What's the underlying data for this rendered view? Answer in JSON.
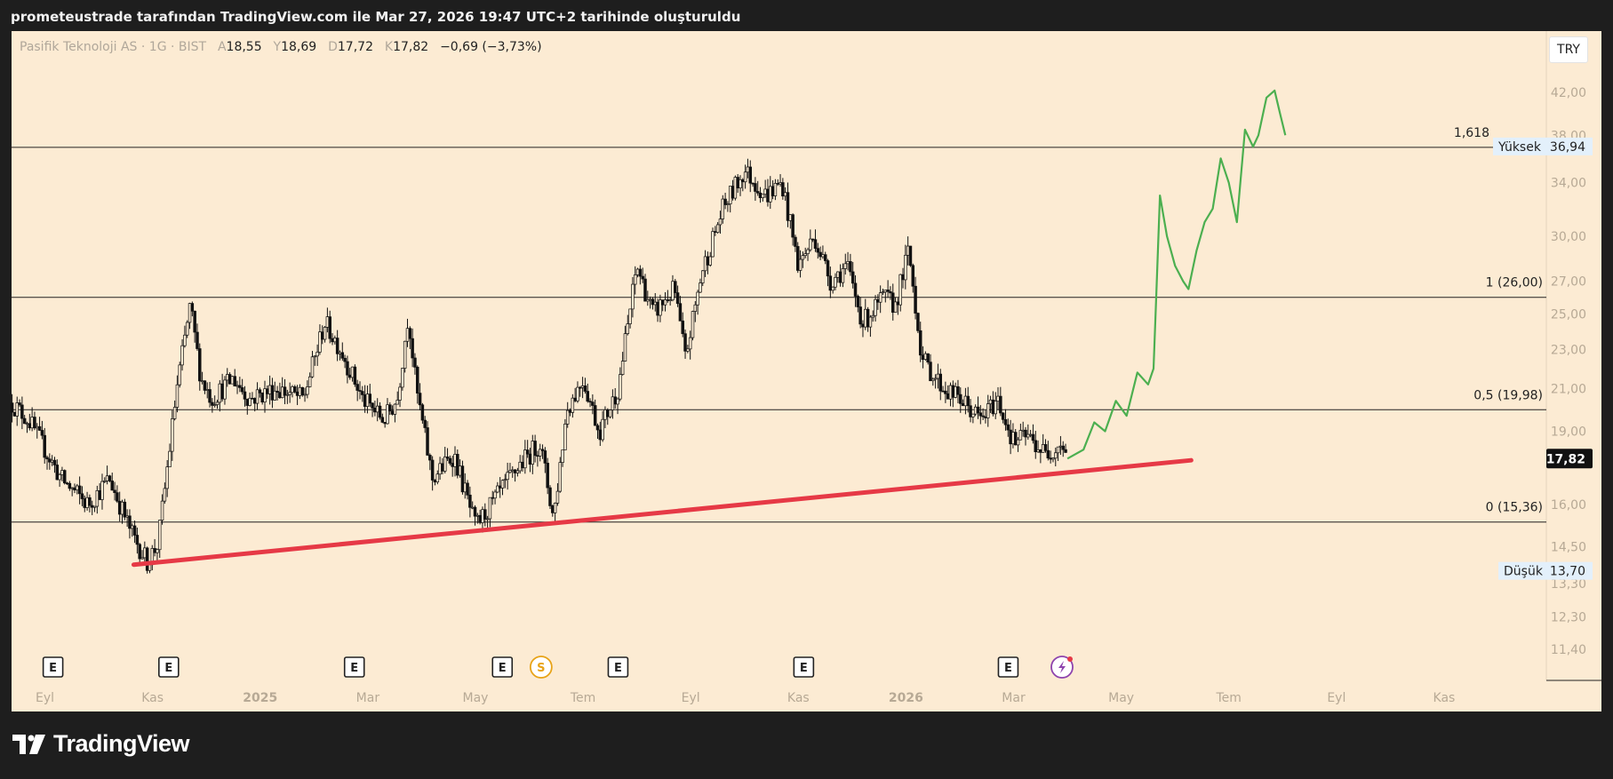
{
  "header": {
    "attribution": "prometeustrade tarafından TradingView.com ile Mar 27, 2026 19:47 UTC+2 tarihinde oluşturuldu"
  },
  "legend": {
    "symbol": "Pasifik Teknoloji AS · 1G · BIST",
    "open_label": "A",
    "open": "18,55",
    "high_label": "Y",
    "high": "18,69",
    "low_label": "D",
    "low": "17,72",
    "close_label": "K",
    "close": "17,82",
    "change": "−0,69 (−3,73%)"
  },
  "currency": "TRY",
  "brand": {
    "name": "TradingView"
  },
  "colors": {
    "pane_bg": "#fcebd3",
    "frame_bg": "#1e1e1e",
    "candle": "#111111",
    "trendline": "#e63946",
    "projection": "#4caf50",
    "fib_line": "#222222",
    "price_tag_bg": "#111111"
  },
  "icons": {
    "earnings": "earnings-e-icon",
    "dividend": "dividend-s-icon",
    "split": "lightning-icon",
    "brand": "tradingview-logo-icon"
  },
  "chart_data": {
    "type": "candlestick",
    "y_scale": "log",
    "ylim": [
      10.6,
      48.5
    ],
    "y_ticks": [
      {
        "v": 42,
        "label": "42,00"
      },
      {
        "v": 38,
        "label": "38,00"
      },
      {
        "v": 34,
        "label": "34,00"
      },
      {
        "v": 30,
        "label": "30,00"
      },
      {
        "v": 27,
        "label": "27,00"
      },
      {
        "v": 25,
        "label": "25,00"
      },
      {
        "v": 23,
        "label": "23,00"
      },
      {
        "v": 21,
        "label": "21,00"
      },
      {
        "v": 19,
        "label": "19,00"
      },
      {
        "v": 16,
        "label": "16,00"
      },
      {
        "v": 14.5,
        "label": "14,50"
      },
      {
        "v": 13.3,
        "label": "13,30"
      },
      {
        "v": 12.3,
        "label": "12,30"
      },
      {
        "v": 11.4,
        "label": "11,40"
      }
    ],
    "x_labels": [
      {
        "t": 0.0,
        "label": "Eyl",
        "bold": false
      },
      {
        "t": 2.0,
        "label": "Kas",
        "bold": false
      },
      {
        "t": 4.0,
        "label": "2025",
        "bold": true
      },
      {
        "t": 6.0,
        "label": "Mar",
        "bold": false
      },
      {
        "t": 8.0,
        "label": "May",
        "bold": false
      },
      {
        "t": 10.0,
        "label": "Tem",
        "bold": false
      },
      {
        "t": 12.0,
        "label": "Eyl",
        "bold": false
      },
      {
        "t": 14.0,
        "label": "Kas",
        "bold": false
      },
      {
        "t": 16.0,
        "label": "2026",
        "bold": true
      },
      {
        "t": 18.0,
        "label": "Mar",
        "bold": false
      },
      {
        "t": 20.0,
        "label": "May",
        "bold": false
      },
      {
        "t": 22.0,
        "label": "Tem",
        "bold": false
      },
      {
        "t": 24.0,
        "label": "Eyl",
        "bold": false
      },
      {
        "t": 26.0,
        "label": "Kas",
        "bold": false
      }
    ],
    "x_range_months": [
      -0.62,
      27.9
    ],
    "price_keypoints": [
      [
        -0.62,
        20.3
      ],
      [
        -0.3,
        19.5
      ],
      [
        0.3,
        17.0
      ],
      [
        0.8,
        16.0
      ],
      [
        1.2,
        17.0
      ],
      [
        1.6,
        15.0
      ],
      [
        1.9,
        14.0
      ],
      [
        2.1,
        14.6
      ],
      [
        2.25,
        17.0
      ],
      [
        2.45,
        21.0
      ],
      [
        2.7,
        25.5
      ],
      [
        2.9,
        21.5
      ],
      [
        3.1,
        20.5
      ],
      [
        3.5,
        21.5
      ],
      [
        3.8,
        20.5
      ],
      [
        4.3,
        21.0
      ],
      [
        4.8,
        20.5
      ],
      [
        5.2,
        24.5
      ],
      [
        5.5,
        23.0
      ],
      [
        5.9,
        20.5
      ],
      [
        6.3,
        19.5
      ],
      [
        6.55,
        20.5
      ],
      [
        6.75,
        25.0
      ],
      [
        6.9,
        21.0
      ],
      [
        7.2,
        17.0
      ],
      [
        7.6,
        18.0
      ],
      [
        8.0,
        15.2
      ],
      [
        8.3,
        16.0
      ],
      [
        8.8,
        17.5
      ],
      [
        9.2,
        18.5
      ],
      [
        9.45,
        15.5
      ],
      [
        9.7,
        20.0
      ],
      [
        10.0,
        21.5
      ],
      [
        10.3,
        19.0
      ],
      [
        10.65,
        21.0
      ],
      [
        11.0,
        28.0
      ],
      [
        11.3,
        25.0
      ],
      [
        11.7,
        26.5
      ],
      [
        11.9,
        22.5
      ],
      [
        12.2,
        27.5
      ],
      [
        12.6,
        32.0
      ],
      [
        13.0,
        35.0
      ],
      [
        13.4,
        33.0
      ],
      [
        13.7,
        34.0
      ],
      [
        14.0,
        28.0
      ],
      [
        14.3,
        30.0
      ],
      [
        14.6,
        27.0
      ],
      [
        14.9,
        28.0
      ],
      [
        15.2,
        24.5
      ],
      [
        15.6,
        26.0
      ],
      [
        15.8,
        25.5
      ],
      [
        16.05,
        29.0
      ],
      [
        16.3,
        22.5
      ],
      [
        16.7,
        21.0
      ],
      [
        17.0,
        20.5
      ],
      [
        17.4,
        19.5
      ],
      [
        17.7,
        20.5
      ],
      [
        18.0,
        18.5
      ],
      [
        18.25,
        18.8
      ],
      [
        18.6,
        18.0
      ],
      [
        18.9,
        18.55
      ],
      [
        19.0,
        17.82
      ]
    ],
    "projection_points": [
      [
        19.0,
        17.82
      ],
      [
        19.3,
        18.2
      ],
      [
        19.5,
        19.4
      ],
      [
        19.7,
        19.0
      ],
      [
        19.9,
        20.4
      ],
      [
        20.1,
        19.7
      ],
      [
        20.3,
        21.8
      ],
      [
        20.5,
        21.2
      ],
      [
        20.6,
        22.0
      ],
      [
        20.65,
        26.0
      ],
      [
        20.72,
        33.0
      ],
      [
        20.85,
        30.0
      ],
      [
        21.0,
        28.0
      ],
      [
        21.15,
        27.0
      ],
      [
        21.25,
        26.5
      ],
      [
        21.4,
        29.0
      ],
      [
        21.55,
        31.0
      ],
      [
        21.7,
        32.0
      ],
      [
        21.85,
        36.0
      ],
      [
        22.0,
        34.0
      ],
      [
        22.15,
        31.0
      ],
      [
        22.3,
        38.5
      ],
      [
        22.45,
        37.0
      ],
      [
        22.55,
        38.0
      ],
      [
        22.7,
        41.5
      ],
      [
        22.85,
        42.2
      ],
      [
        22.95,
        40.0
      ],
      [
        23.05,
        38.0
      ]
    ],
    "trendline": {
      "from": [
        1.65,
        13.9
      ],
      "to": [
        21.3,
        17.75
      ]
    },
    "fib_levels": [
      {
        "value": 15.36,
        "label": "0 (15,36)"
      },
      {
        "value": 19.98,
        "label": "0,5 (19,98)"
      },
      {
        "value": 26.0,
        "label": "1 (26,00)"
      },
      {
        "value": 36.94,
        "label": "1,618"
      }
    ],
    "markers": {
      "high": {
        "value": 36.94,
        "label": "Yüksek",
        "price": "36,94"
      },
      "low": {
        "value": 13.7,
        "label": "Düşük",
        "price": "13,70"
      },
      "last": {
        "value": 17.82,
        "price": "17,82"
      }
    },
    "events": [
      {
        "t": 0.15,
        "type": "earnings",
        "label": "E"
      },
      {
        "t": 2.3,
        "type": "earnings",
        "label": "E"
      },
      {
        "t": 5.75,
        "type": "earnings",
        "label": "E"
      },
      {
        "t": 8.5,
        "type": "earnings",
        "label": "E"
      },
      {
        "t": 9.22,
        "type": "dividend",
        "label": "S"
      },
      {
        "t": 10.65,
        "type": "earnings",
        "label": "E"
      },
      {
        "t": 14.1,
        "type": "earnings",
        "label": "E"
      },
      {
        "t": 17.9,
        "type": "earnings",
        "label": "E"
      },
      {
        "t": 18.9,
        "type": "split",
        "label": ""
      }
    ]
  }
}
